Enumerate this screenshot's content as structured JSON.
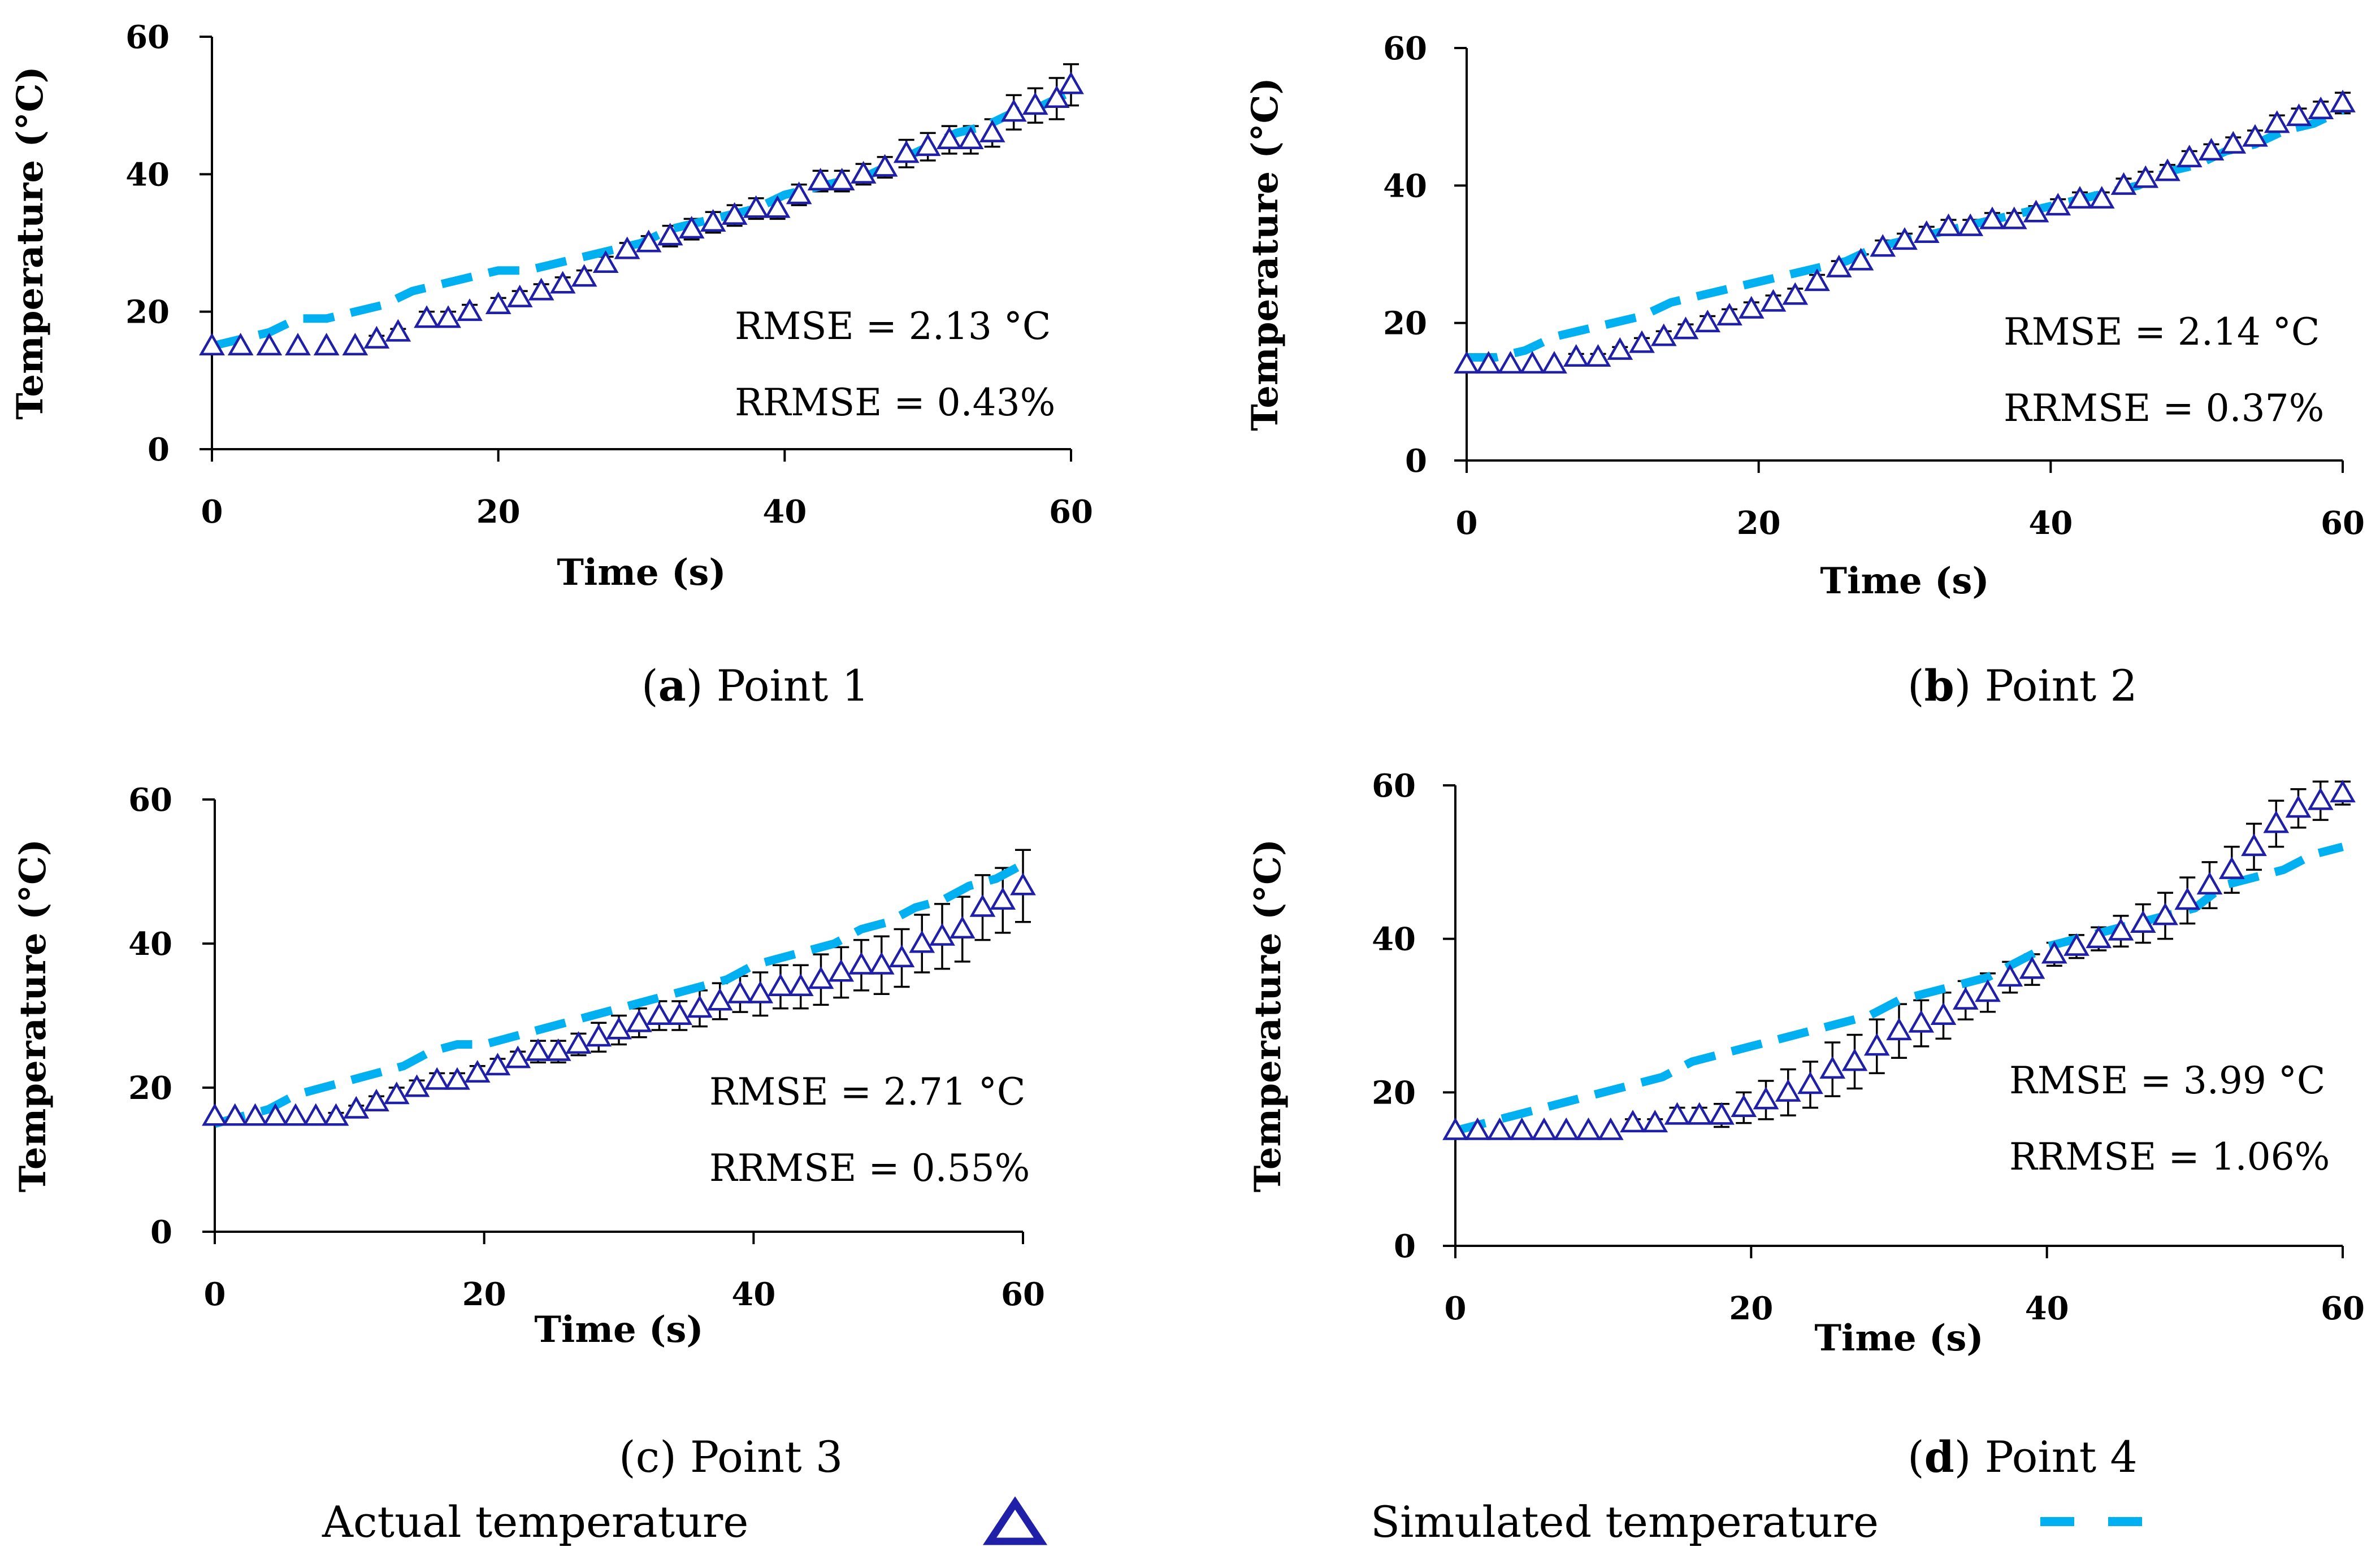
{
  "colors": {
    "actual": "#1f1fa8",
    "simulated": "#00b0f0",
    "errorbar": "#000000",
    "axis": "#000000"
  },
  "legend": {
    "actual_label": "Actual temperature",
    "actual_icon": "triangle-marker-icon",
    "simulated_label": "Simulated temperature",
    "simulated_icon": "dashed-line-icon"
  },
  "chart_data": [
    {
      "type": "line",
      "caption_letter": "a",
      "caption_open": "(",
      "caption_close": ")",
      "caption_text": " Point 1",
      "caption_letter_bold": true,
      "xlabel": "Time (s)",
      "ylabel": "Temperature (°C)",
      "xlim": [
        0,
        60
      ],
      "ylim": [
        0,
        60
      ],
      "xticks": [
        "0",
        "20",
        "40",
        "60"
      ],
      "yticks": [
        "0",
        "20",
        "40",
        "60"
      ],
      "rmse": "RMSE = 2.13 °C",
      "rrmse": "RRMSE = 0.43%",
      "series": [
        {
          "name": "Actual temperature",
          "kind": "markers",
          "x": [
            0,
            2,
            4,
            6,
            8,
            10,
            11.5,
            13,
            15,
            16.5,
            18,
            20,
            21.5,
            23,
            24.5,
            26,
            27.5,
            29,
            30.5,
            32,
            33.5,
            35,
            36.5,
            38,
            39.5,
            41,
            42.5,
            44,
            45.5,
            47,
            48.5,
            50,
            51.5,
            53,
            54.5,
            56,
            57.5,
            59,
            60
          ],
          "y": [
            15,
            15,
            15,
            15,
            15,
            15,
            16,
            17,
            19,
            19,
            20,
            21,
            22,
            23,
            24,
            25,
            27,
            29,
            30,
            31,
            32,
            33,
            34,
            35,
            35,
            37,
            39,
            39,
            40,
            41,
            43,
            44,
            45,
            45,
            46,
            49,
            50,
            51,
            53
          ],
          "err": [
            0,
            0,
            0,
            0,
            0,
            0,
            0.5,
            0.5,
            1,
            1,
            1,
            1,
            1,
            1,
            1,
            1,
            1,
            1,
            1,
            1.5,
            1.5,
            1.5,
            1.5,
            1.5,
            1.5,
            1.5,
            1.5,
            1.5,
            1.5,
            1.5,
            2,
            2,
            2,
            2,
            2,
            2.5,
            2.5,
            3,
            3
          ]
        },
        {
          "name": "Simulated temperature",
          "kind": "dashed",
          "x": [
            0,
            2,
            4,
            6,
            8,
            10,
            12,
            14,
            16,
            18,
            20,
            22,
            24,
            26,
            28,
            30,
            32,
            34,
            36,
            38,
            40,
            42,
            44,
            46,
            48,
            50,
            52,
            54,
            56,
            58,
            60
          ],
          "y": [
            15,
            16,
            17,
            19,
            19,
            20,
            21,
            23,
            24,
            25,
            26,
            26,
            27,
            28,
            29,
            30,
            32,
            33,
            34,
            35,
            37,
            38,
            39,
            40,
            42,
            44,
            46,
            47,
            49,
            50,
            52
          ]
        }
      ]
    },
    {
      "type": "line",
      "caption_letter": "b",
      "caption_open": "(",
      "caption_close": ")",
      "caption_text": " Point 2",
      "caption_letter_bold": true,
      "xlabel": "Time (s)",
      "ylabel": "Temperature (°C)",
      "xlim": [
        0,
        60
      ],
      "ylim": [
        0,
        60
      ],
      "xticks": [
        "0",
        "20",
        "40",
        "60"
      ],
      "yticks": [
        "0",
        "20",
        "40",
        "60"
      ],
      "rmse": "RMSE = 2.14 °C",
      "rrmse": "RRMSE = 0.37%",
      "series": [
        {
          "name": "Actual temperature",
          "kind": "markers",
          "x": [
            0,
            1.5,
            3,
            4.5,
            6,
            7.5,
            9,
            10.5,
            12,
            13.5,
            15,
            16.5,
            18,
            19.5,
            21,
            22.5,
            24,
            25.5,
            27,
            28.5,
            30,
            31.5,
            33,
            34.5,
            36,
            37.5,
            39,
            40.5,
            42,
            43.5,
            45,
            46.5,
            48,
            49.5,
            51,
            52.5,
            54,
            55.5,
            57,
            58.5,
            60
          ],
          "y": [
            14,
            14,
            14,
            14,
            14,
            15,
            15,
            16,
            17,
            18,
            19,
            20,
            21,
            22,
            23,
            24,
            26,
            28,
            29,
            31,
            32,
            33,
            34,
            34,
            35,
            35,
            36,
            37,
            38,
            38,
            40,
            41,
            42,
            44,
            45,
            46,
            47,
            49,
            50,
            51,
            52
          ],
          "err": [
            0,
            0,
            0,
            0,
            0,
            0.5,
            0.5,
            0.5,
            0.8,
            0.8,
            0.8,
            1,
            1,
            1,
            1,
            1,
            1,
            1,
            1,
            1,
            1,
            1,
            1,
            1,
            1,
            1,
            1,
            1,
            1,
            1,
            1,
            1,
            1,
            1,
            1,
            1,
            1,
            1.2,
            1.2,
            1.2,
            1.5
          ]
        },
        {
          "name": "Simulated temperature",
          "kind": "dashed",
          "x": [
            0,
            2,
            4,
            6,
            8,
            10,
            12,
            14,
            16,
            18,
            20,
            22,
            24,
            26,
            28,
            30,
            32,
            34,
            36,
            38,
            40,
            42,
            44,
            46,
            48,
            50,
            52,
            54,
            56,
            58,
            60
          ],
          "y": [
            15,
            15,
            16,
            18,
            19,
            20,
            21,
            23,
            24,
            25,
            26,
            27,
            28,
            29,
            31,
            32,
            33,
            34,
            35,
            36,
            37,
            38,
            39,
            40,
            42,
            43,
            45,
            46,
            48,
            49,
            51
          ]
        }
      ]
    },
    {
      "type": "line",
      "caption_letter": "c",
      "caption_open": "(",
      "caption_close": ")",
      "caption_text": " Point 3",
      "caption_letter_bold": false,
      "xlabel": "Time (s)",
      "ylabel": "Temperature (°C)",
      "xlim": [
        0,
        60
      ],
      "ylim": [
        0,
        60
      ],
      "xticks": [
        "0",
        "20",
        "40",
        "60"
      ],
      "yticks": [
        "0",
        "20",
        "40",
        "60"
      ],
      "rmse": "RMSE = 2.71 °C",
      "rrmse": "RRMSE = 0.55%",
      "series": [
        {
          "name": "Actual temperature",
          "kind": "markers",
          "x": [
            0,
            1.5,
            3,
            4.5,
            6,
            7.5,
            9,
            10.5,
            12,
            13.5,
            15,
            16.5,
            18,
            19.5,
            21,
            22.5,
            24,
            25.5,
            27,
            28.5,
            30,
            31.5,
            33,
            34.5,
            36,
            37.5,
            39,
            40.5,
            42,
            43.5,
            45,
            46.5,
            48,
            49.5,
            51,
            52.5,
            54,
            55.5,
            57,
            58.5,
            60
          ],
          "y": [
            16,
            16,
            16,
            16,
            16,
            16,
            16,
            17,
            18,
            19,
            20,
            21,
            21,
            22,
            23,
            24,
            25,
            25,
            26,
            27,
            28,
            29,
            30,
            30,
            31,
            32,
            33,
            33,
            34,
            34,
            35,
            36,
            37,
            37,
            38,
            40,
            41,
            42,
            45,
            46,
            48
          ],
          "err": [
            0,
            0,
            0,
            0,
            0,
            0,
            0.5,
            0.5,
            0.8,
            1,
            1,
            1,
            1,
            1,
            1,
            1,
            1.5,
            1.5,
            1.5,
            2,
            2,
            2,
            2,
            2,
            2.5,
            2.5,
            2.5,
            3,
            3,
            3,
            3.5,
            3.5,
            3.5,
            4,
            4,
            4,
            4.5,
            4.5,
            4.5,
            4.5,
            5
          ]
        },
        {
          "name": "Simulated temperature",
          "kind": "dashed",
          "x": [
            0,
            2,
            4,
            6,
            8,
            10,
            12,
            14,
            16,
            18,
            20,
            22,
            24,
            26,
            28,
            30,
            32,
            34,
            36,
            38,
            40,
            42,
            44,
            46,
            48,
            50,
            52,
            54,
            56,
            58,
            60
          ],
          "y": [
            15,
            16,
            17,
            19,
            20,
            21,
            22,
            23,
            25,
            26,
            26,
            27,
            28,
            29,
            30,
            31,
            32,
            33,
            34,
            35,
            37,
            38,
            39,
            40,
            42,
            43,
            45,
            46,
            48,
            49,
            51
          ]
        }
      ]
    },
    {
      "type": "line",
      "caption_letter": "d",
      "caption_open": "(",
      "caption_close": ")",
      "caption_text": " Point 4",
      "caption_letter_bold": true,
      "xlabel": "Time (s)",
      "ylabel": "Temperature (°C)",
      "xlim": [
        0,
        60
      ],
      "ylim": [
        0,
        60
      ],
      "xticks": [
        "0",
        "20",
        "40",
        "60"
      ],
      "yticks": [
        "0",
        "20",
        "40",
        "60"
      ],
      "rmse": "RMSE = 3.99 °C",
      "rrmse": "RRMSE = 1.06%",
      "series": [
        {
          "name": "Actual temperature",
          "kind": "markers",
          "x": [
            0,
            1.5,
            3,
            4.5,
            6,
            7.5,
            9,
            10.5,
            12,
            13.5,
            15,
            16.5,
            18,
            19.5,
            21,
            22.5,
            24,
            25.5,
            27,
            28.5,
            30,
            31.5,
            33,
            34.5,
            36,
            37.5,
            39,
            40.5,
            42,
            43.5,
            45,
            46.5,
            48,
            49.5,
            51,
            52.5,
            54,
            55.5,
            57,
            58.5,
            60
          ],
          "y": [
            15,
            15,
            15,
            15,
            15,
            15,
            15,
            15,
            16,
            16,
            17,
            17,
            17,
            18,
            19,
            20,
            21,
            23,
            24,
            26,
            28,
            29,
            30,
            32,
            33,
            35,
            36,
            38,
            39,
            40,
            41,
            42,
            43,
            45,
            47,
            49,
            52,
            55,
            57,
            58,
            59
          ],
          "err": [
            0,
            0,
            0,
            0,
            0,
            0,
            0,
            0,
            0.5,
            0.5,
            1,
            1,
            1.5,
            2,
            2.5,
            3,
            3,
            3.5,
            3.5,
            3.5,
            3.5,
            3,
            3,
            2.5,
            2.5,
            2,
            2,
            1.5,
            1.5,
            1.5,
            2,
            2.5,
            3,
            3,
            3,
            3,
            3,
            3,
            2.5,
            2.5,
            1.5
          ]
        },
        {
          "name": "Simulated temperature",
          "kind": "dashed",
          "x": [
            0,
            2,
            4,
            6,
            8,
            10,
            12,
            14,
            16,
            18,
            20,
            22,
            24,
            26,
            28,
            30,
            32,
            34,
            36,
            38,
            40,
            42,
            44,
            46,
            48,
            50,
            52,
            54,
            56,
            58,
            60
          ],
          "y": [
            15,
            16,
            17,
            18,
            19,
            20,
            21,
            22,
            24,
            25,
            26,
            27,
            28,
            29,
            30,
            32,
            33,
            34,
            35,
            37,
            39,
            40,
            41,
            42,
            43,
            44,
            47,
            48,
            49,
            51,
            52
          ]
        }
      ]
    }
  ]
}
